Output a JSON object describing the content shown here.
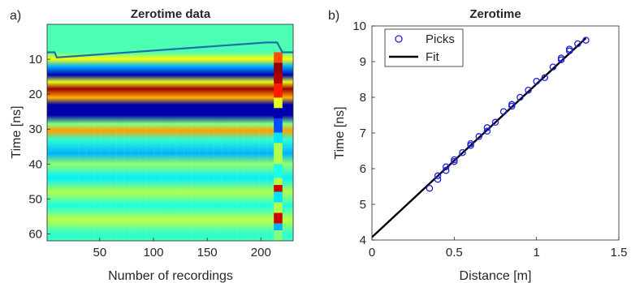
{
  "chart_data": [
    {
      "panel_label": "a)",
      "type": "heatmap",
      "title": "Zerotime data",
      "xlabel": "Number of recordings",
      "ylabel": "Time [ns]",
      "xlim": [
        1,
        230
      ],
      "ylim": [
        0,
        62
      ],
      "y_reversed": true,
      "xticks": [
        "50",
        "100",
        "150",
        "200"
      ],
      "yticks": [
        "10",
        "20",
        "30",
        "40",
        "50",
        "60"
      ],
      "zerotime_line": {
        "x": [
          1,
          8,
          10,
          205,
          210,
          215,
          220,
          230
        ],
        "y": [
          8,
          8,
          9.5,
          5.2,
          5.2,
          5.2,
          8,
          8
        ],
        "color": "#1f6fa8"
      },
      "colormap": "jet",
      "bands": [
        {
          "t": 0,
          "v": 0.45
        },
        {
          "t": 8,
          "v": 0.45
        },
        {
          "t": 10,
          "v": 0.62
        },
        {
          "t": 12,
          "v": 0.3
        },
        {
          "t": 14.5,
          "v": 0.05
        },
        {
          "t": 16.5,
          "v": 0.6
        },
        {
          "t": 18.5,
          "v": 0.97
        },
        {
          "t": 21,
          "v": 0.7
        },
        {
          "t": 23,
          "v": 0.04
        },
        {
          "t": 26,
          "v": 0.05
        },
        {
          "t": 28.5,
          "v": 0.5
        },
        {
          "t": 30.5,
          "v": 0.72
        },
        {
          "t": 33,
          "v": 0.42
        },
        {
          "t": 37,
          "v": 0.3
        },
        {
          "t": 40,
          "v": 0.52
        },
        {
          "t": 44,
          "v": 0.36
        },
        {
          "t": 48,
          "v": 0.55
        },
        {
          "t": 52,
          "v": 0.4
        },
        {
          "t": 56,
          "v": 0.56
        },
        {
          "t": 60,
          "v": 0.42
        },
        {
          "t": 62,
          "v": 0.44
        }
      ]
    },
    {
      "panel_label": "b)",
      "type": "scatter",
      "title": "Zerotime",
      "xlabel": "Distance [m]",
      "ylabel": "Time [ns]",
      "xlim": [
        0,
        1.5
      ],
      "ylim": [
        4,
        10
      ],
      "xticks": [
        "0",
        "0.5",
        "1",
        "1.5"
      ],
      "yticks": [
        "4",
        "5",
        "6",
        "7",
        "8",
        "9",
        "10"
      ],
      "legend": {
        "placement": "top-left",
        "entries": [
          "Picks",
          "Fit"
        ]
      },
      "series": [
        {
          "name": "Picks",
          "marker": "o",
          "color": "#1f1fdd",
          "x": [
            0.35,
            0.4,
            0.4,
            0.45,
            0.45,
            0.5,
            0.5,
            0.55,
            0.6,
            0.6,
            0.65,
            0.7,
            0.7,
            0.75,
            0.8,
            0.85,
            0.85,
            0.9,
            0.95,
            1.0,
            1.05,
            1.1,
            1.15,
            1.15,
            1.2,
            1.2,
            1.25,
            1.3
          ],
          "y": [
            5.45,
            5.7,
            5.8,
            5.95,
            6.05,
            6.2,
            6.25,
            6.45,
            6.65,
            6.7,
            6.9,
            7.05,
            7.15,
            7.3,
            7.6,
            7.75,
            7.8,
            8.0,
            8.2,
            8.45,
            8.55,
            8.85,
            9.05,
            9.1,
            9.3,
            9.35,
            9.5,
            9.6
          ]
        },
        {
          "name": "Fit",
          "type": "line",
          "color": "#000000",
          "x": [
            0,
            1.3
          ],
          "y": [
            4.08,
            9.66
          ]
        }
      ]
    }
  ]
}
